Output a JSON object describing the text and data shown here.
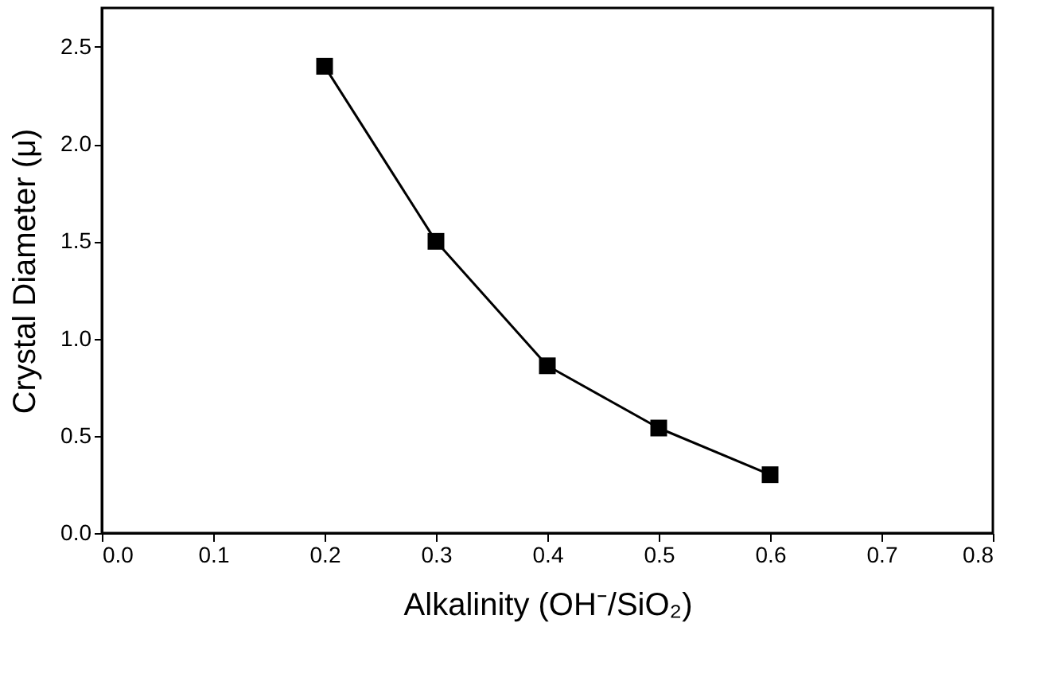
{
  "chart_data": {
    "type": "line",
    "xlabel": "Alkalinity (OH⁻/SiO₂)",
    "ylabel": "Crystal Diameter (μ)",
    "x": [
      0.2,
      0.3,
      0.4,
      0.5,
      0.6
    ],
    "series": [
      {
        "color": "#000000",
        "values": [
          2.4,
          1.5,
          0.86,
          0.54,
          0.3
        ]
      }
    ],
    "marker": "square",
    "line_style": "solid",
    "grid": false,
    "xlim": [
      0,
      0.8
    ],
    "xticks": [
      {
        "value": 0,
        "label": "0.0"
      },
      0.1,
      0.2,
      0.3,
      0.4,
      0.5,
      0.6,
      0.7,
      0.8
    ],
    "ylim": [
      0,
      2.7
    ],
    "yticks": [
      {
        "value": 0,
        "label": "0.0"
      },
      0.5,
      {
        "value": 1,
        "label": "1.0"
      },
      1.5,
      {
        "value": 2,
        "label": "2.0"
      },
      2.5
    ]
  }
}
